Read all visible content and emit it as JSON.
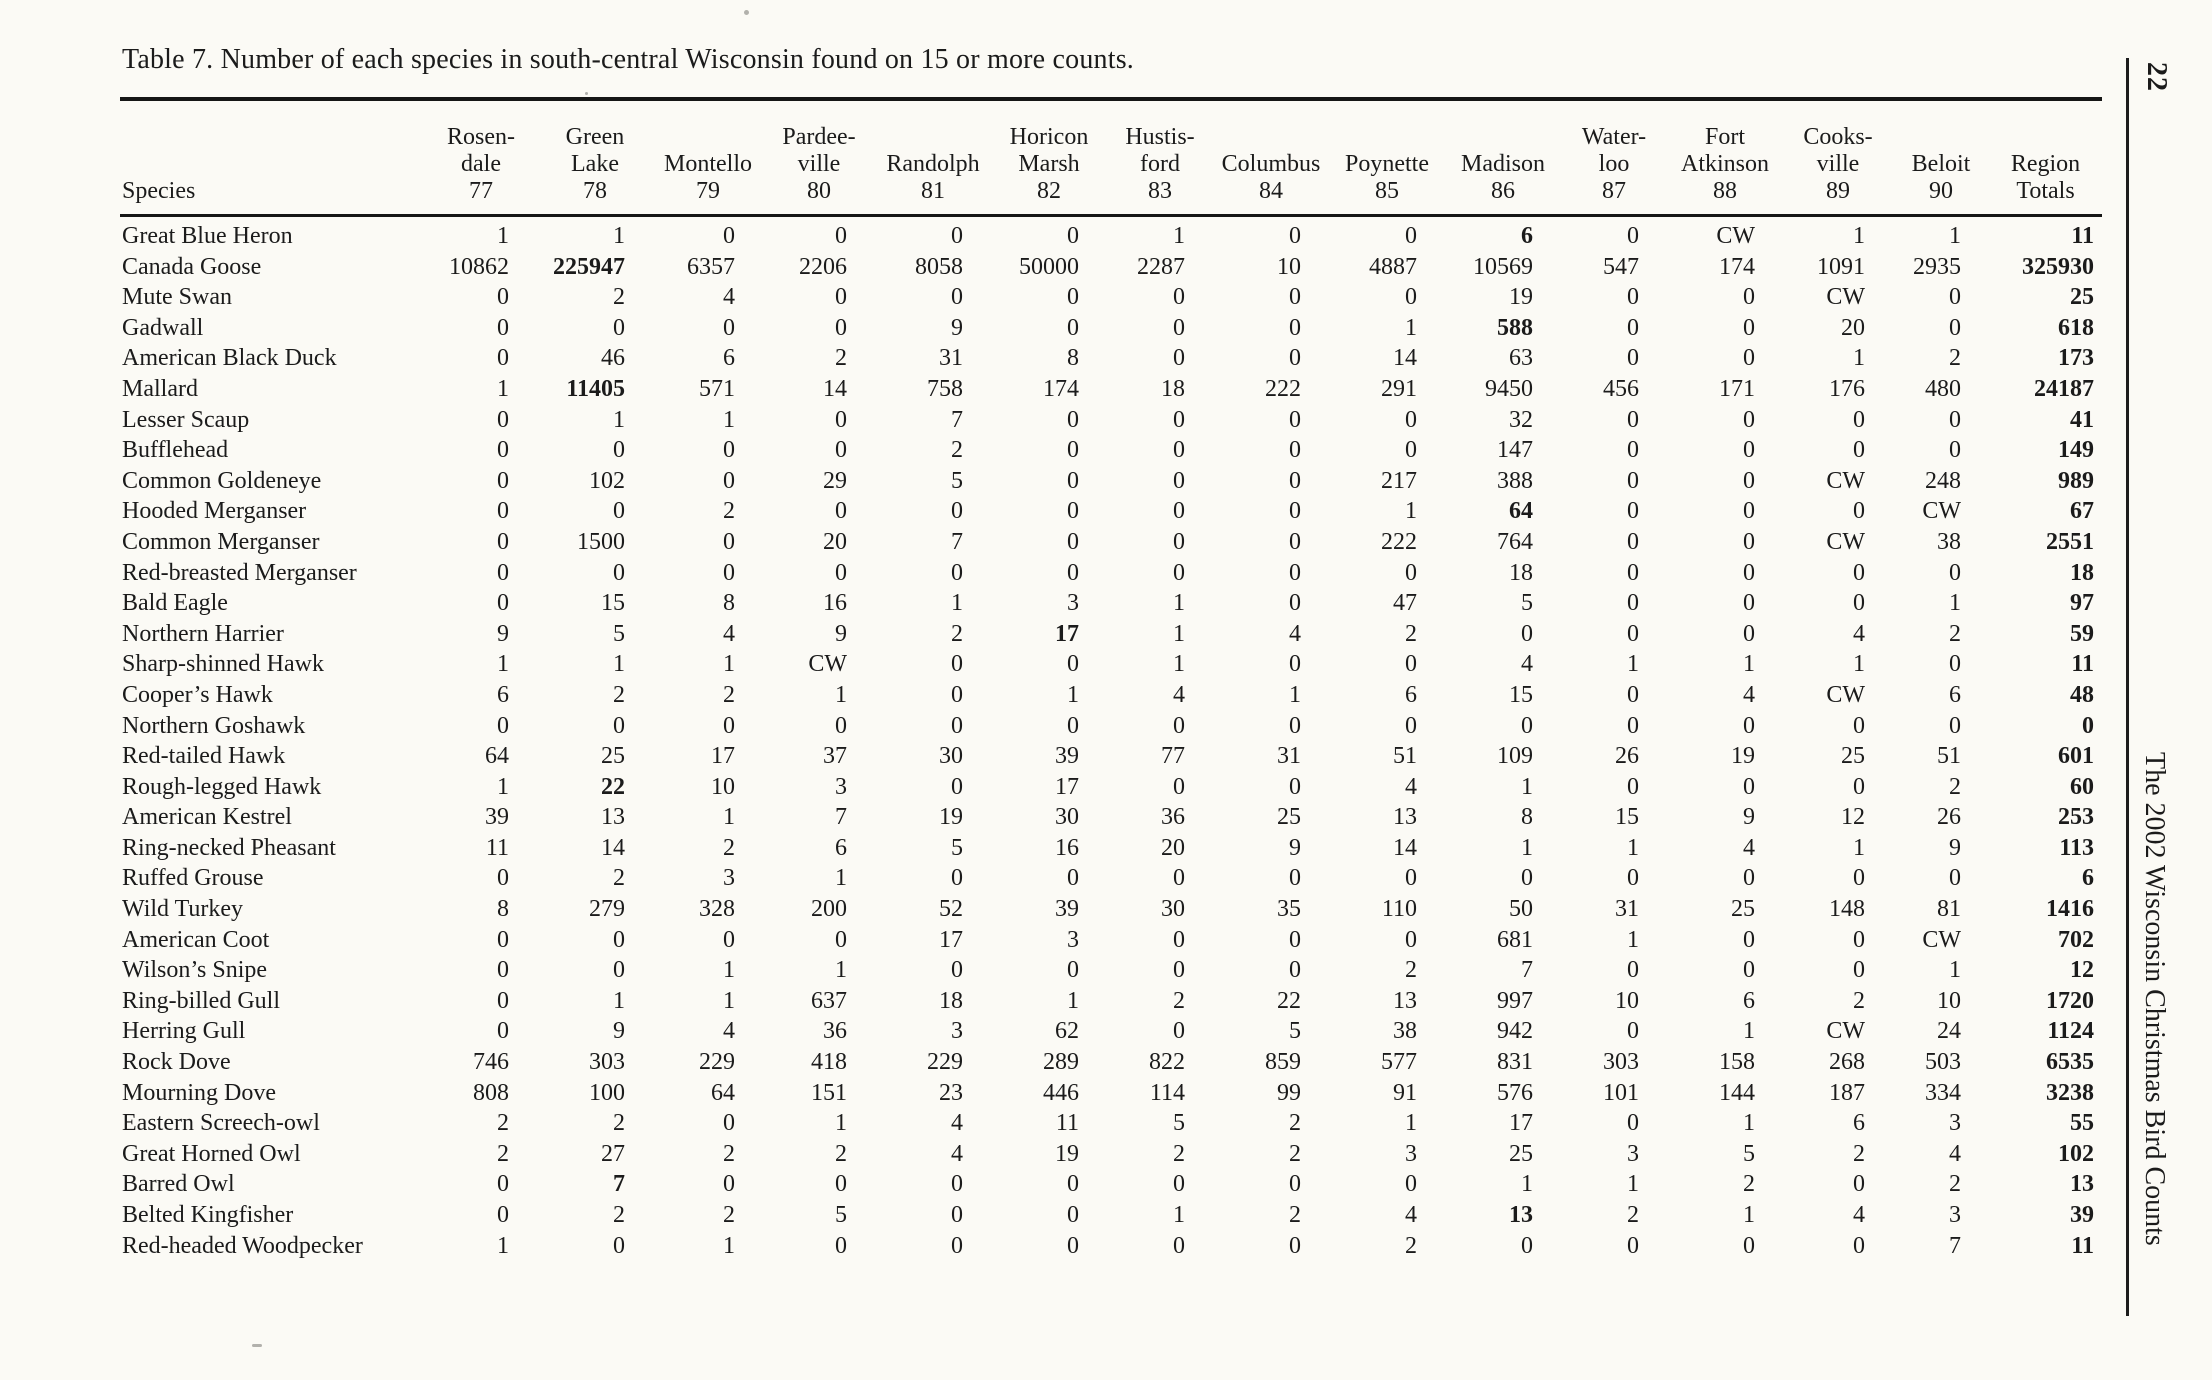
{
  "title": "Table 7. Number of each species in south-central Wisconsin found on 15 or more counts.",
  "sidebar": {
    "page_number": "22",
    "journal_title": "The 2002 Wisconsin Christmas Bird Counts"
  },
  "table": {
    "species_header": "Species",
    "columns": [
      {
        "lines": [
          "Rosen-",
          "dale",
          "77"
        ]
      },
      {
        "lines": [
          "Green",
          "Lake",
          "78"
        ]
      },
      {
        "lines": [
          "Montello",
          "79"
        ]
      },
      {
        "lines": [
          "Pardee-",
          "ville",
          "80"
        ]
      },
      {
        "lines": [
          "Randolph",
          "81"
        ]
      },
      {
        "lines": [
          "Horicon",
          "Marsh",
          "82"
        ]
      },
      {
        "lines": [
          "Hustis-",
          "ford",
          "83"
        ]
      },
      {
        "lines": [
          "Columbus",
          "84"
        ]
      },
      {
        "lines": [
          "Poynette",
          "85"
        ]
      },
      {
        "lines": [
          "Madison",
          "86"
        ]
      },
      {
        "lines": [
          "Water-",
          "loo",
          "87"
        ]
      },
      {
        "lines": [
          "Fort",
          "Atkinson",
          "88"
        ]
      },
      {
        "lines": [
          "Cooks-",
          "ville",
          "89"
        ]
      },
      {
        "lines": [
          "Beloit",
          "90"
        ]
      },
      {
        "lines": [
          "Region",
          "Totals"
        ],
        "bold": true
      }
    ],
    "rows": [
      {
        "species": "Great Blue Heron",
        "values": [
          "1",
          "1",
          "0",
          "0",
          "0",
          "0",
          "1",
          "0",
          "0",
          "6",
          "0",
          "CW",
          "1",
          "1"
        ],
        "bold": [
          9
        ],
        "total": "11"
      },
      {
        "species": "Canada Goose",
        "values": [
          "10862",
          "225947",
          "6357",
          "2206",
          "8058",
          "50000",
          "2287",
          "10",
          "4887",
          "10569",
          "547",
          "174",
          "1091",
          "2935"
        ],
        "bold": [
          1
        ],
        "total": "325930"
      },
      {
        "species": "Mute Swan",
        "values": [
          "0",
          "2",
          "4",
          "0",
          "0",
          "0",
          "0",
          "0",
          "0",
          "19",
          "0",
          "0",
          "CW",
          "0"
        ],
        "bold": [],
        "total": "25"
      },
      {
        "species": "Gadwall",
        "values": [
          "0",
          "0",
          "0",
          "0",
          "9",
          "0",
          "0",
          "0",
          "1",
          "588",
          "0",
          "0",
          "20",
          "0"
        ],
        "bold": [
          9
        ],
        "total": "618"
      },
      {
        "species": "American Black Duck",
        "values": [
          "0",
          "46",
          "6",
          "2",
          "31",
          "8",
          "0",
          "0",
          "14",
          "63",
          "0",
          "0",
          "1",
          "2"
        ],
        "bold": [],
        "total": "173"
      },
      {
        "species": "Mallard",
        "values": [
          "1",
          "11405",
          "571",
          "14",
          "758",
          "174",
          "18",
          "222",
          "291",
          "9450",
          "456",
          "171",
          "176",
          "480"
        ],
        "bold": [
          1
        ],
        "total": "24187"
      },
      {
        "species": "Lesser Scaup",
        "values": [
          "0",
          "1",
          "1",
          "0",
          "7",
          "0",
          "0",
          "0",
          "0",
          "32",
          "0",
          "0",
          "0",
          "0"
        ],
        "bold": [],
        "total": "41"
      },
      {
        "species": "Bufflehead",
        "values": [
          "0",
          "0",
          "0",
          "0",
          "2",
          "0",
          "0",
          "0",
          "0",
          "147",
          "0",
          "0",
          "0",
          "0"
        ],
        "bold": [],
        "total": "149"
      },
      {
        "species": "Common Goldeneye",
        "values": [
          "0",
          "102",
          "0",
          "29",
          "5",
          "0",
          "0",
          "0",
          "217",
          "388",
          "0",
          "0",
          "CW",
          "248"
        ],
        "bold": [],
        "total": "989"
      },
      {
        "species": "Hooded Merganser",
        "values": [
          "0",
          "0",
          "2",
          "0",
          "0",
          "0",
          "0",
          "0",
          "1",
          "64",
          "0",
          "0",
          "0",
          "CW"
        ],
        "bold": [
          9
        ],
        "total": "67"
      },
      {
        "species": "Common Merganser",
        "values": [
          "0",
          "1500",
          "0",
          "20",
          "7",
          "0",
          "0",
          "0",
          "222",
          "764",
          "0",
          "0",
          "CW",
          "38"
        ],
        "bold": [],
        "total": "2551"
      },
      {
        "species": "Red-breasted Merganser",
        "values": [
          "0",
          "0",
          "0",
          "0",
          "0",
          "0",
          "0",
          "0",
          "0",
          "18",
          "0",
          "0",
          "0",
          "0"
        ],
        "bold": [],
        "total": "18"
      },
      {
        "species": "Bald Eagle",
        "values": [
          "0",
          "15",
          "8",
          "16",
          "1",
          "3",
          "1",
          "0",
          "47",
          "5",
          "0",
          "0",
          "0",
          "1"
        ],
        "bold": [],
        "total": "97"
      },
      {
        "species": "Northern Harrier",
        "values": [
          "9",
          "5",
          "4",
          "9",
          "2",
          "17",
          "1",
          "4",
          "2",
          "0",
          "0",
          "0",
          "4",
          "2"
        ],
        "bold": [
          5
        ],
        "total": "59"
      },
      {
        "species": "Sharp-shinned Hawk",
        "values": [
          "1",
          "1",
          "1",
          "CW",
          "0",
          "0",
          "1",
          "0",
          "0",
          "4",
          "1",
          "1",
          "1",
          "0"
        ],
        "bold": [],
        "total": "11"
      },
      {
        "species": "Cooper’s Hawk",
        "values": [
          "6",
          "2",
          "2",
          "1",
          "0",
          "1",
          "4",
          "1",
          "6",
          "15",
          "0",
          "4",
          "CW",
          "6"
        ],
        "bold": [],
        "total": "48"
      },
      {
        "species": "Northern Goshawk",
        "values": [
          "0",
          "0",
          "0",
          "0",
          "0",
          "0",
          "0",
          "0",
          "0",
          "0",
          "0",
          "0",
          "0",
          "0"
        ],
        "bold": [],
        "total": "0"
      },
      {
        "species": "Red-tailed Hawk",
        "values": [
          "64",
          "25",
          "17",
          "37",
          "30",
          "39",
          "77",
          "31",
          "51",
          "109",
          "26",
          "19",
          "25",
          "51"
        ],
        "bold": [],
        "total": "601"
      },
      {
        "species": "Rough-legged Hawk",
        "values": [
          "1",
          "22",
          "10",
          "3",
          "0",
          "17",
          "0",
          "0",
          "4",
          "1",
          "0",
          "0",
          "0",
          "2"
        ],
        "bold": [
          1
        ],
        "total": "60"
      },
      {
        "species": "American Kestrel",
        "values": [
          "39",
          "13",
          "1",
          "7",
          "19",
          "30",
          "36",
          "25",
          "13",
          "8",
          "15",
          "9",
          "12",
          "26"
        ],
        "bold": [],
        "total": "253"
      },
      {
        "species": "Ring-necked Pheasant",
        "values": [
          "11",
          "14",
          "2",
          "6",
          "5",
          "16",
          "20",
          "9",
          "14",
          "1",
          "1",
          "4",
          "1",
          "9"
        ],
        "bold": [],
        "total": "113"
      },
      {
        "species": "Ruffed Grouse",
        "values": [
          "0",
          "2",
          "3",
          "1",
          "0",
          "0",
          "0",
          "0",
          "0",
          "0",
          "0",
          "0",
          "0",
          "0"
        ],
        "bold": [],
        "total": "6"
      },
      {
        "species": "Wild Turkey",
        "values": [
          "8",
          "279",
          "328",
          "200",
          "52",
          "39",
          "30",
          "35",
          "110",
          "50",
          "31",
          "25",
          "148",
          "81"
        ],
        "bold": [],
        "total": "1416"
      },
      {
        "species": "American Coot",
        "values": [
          "0",
          "0",
          "0",
          "0",
          "17",
          "3",
          "0",
          "0",
          "0",
          "681",
          "1",
          "0",
          "0",
          "CW"
        ],
        "bold": [],
        "total": "702"
      },
      {
        "species": "Wilson’s Snipe",
        "values": [
          "0",
          "0",
          "1",
          "1",
          "0",
          "0",
          "0",
          "0",
          "2",
          "7",
          "0",
          "0",
          "0",
          "1"
        ],
        "bold": [],
        "total": "12"
      },
      {
        "species": "Ring-billed Gull",
        "values": [
          "0",
          "1",
          "1",
          "637",
          "18",
          "1",
          "2",
          "22",
          "13",
          "997",
          "10",
          "6",
          "2",
          "10"
        ],
        "bold": [],
        "total": "1720"
      },
      {
        "species": "Herring Gull",
        "values": [
          "0",
          "9",
          "4",
          "36",
          "3",
          "62",
          "0",
          "5",
          "38",
          "942",
          "0",
          "1",
          "CW",
          "24"
        ],
        "bold": [],
        "total": "1124"
      },
      {
        "species": "Rock Dove",
        "values": [
          "746",
          "303",
          "229",
          "418",
          "229",
          "289",
          "822",
          "859",
          "577",
          "831",
          "303",
          "158",
          "268",
          "503"
        ],
        "bold": [],
        "total": "6535"
      },
      {
        "species": "Mourning Dove",
        "values": [
          "808",
          "100",
          "64",
          "151",
          "23",
          "446",
          "114",
          "99",
          "91",
          "576",
          "101",
          "144",
          "187",
          "334"
        ],
        "bold": [],
        "total": "3238"
      },
      {
        "species": "Eastern Screech-owl",
        "values": [
          "2",
          "2",
          "0",
          "1",
          "4",
          "11",
          "5",
          "2",
          "1",
          "17",
          "0",
          "1",
          "6",
          "3"
        ],
        "bold": [],
        "total": "55"
      },
      {
        "species": "Great Horned Owl",
        "values": [
          "2",
          "27",
          "2",
          "2",
          "4",
          "19",
          "2",
          "2",
          "3",
          "25",
          "3",
          "5",
          "2",
          "4"
        ],
        "bold": [],
        "total": "102"
      },
      {
        "species": "Barred Owl",
        "values": [
          "0",
          "7",
          "0",
          "0",
          "0",
          "0",
          "0",
          "0",
          "0",
          "1",
          "1",
          "2",
          "0",
          "2"
        ],
        "bold": [
          1
        ],
        "total": "13"
      },
      {
        "species": "Belted Kingfisher",
        "values": [
          "0",
          "2",
          "2",
          "5",
          "0",
          "0",
          "1",
          "2",
          "4",
          "13",
          "2",
          "1",
          "4",
          "3"
        ],
        "bold": [
          9
        ],
        "total": "39"
      },
      {
        "species": "Red-headed Woodpecker",
        "values": [
          "1",
          "0",
          "1",
          "0",
          "0",
          "0",
          "0",
          "0",
          "2",
          "0",
          "0",
          "0",
          "0",
          "7"
        ],
        "bold": [],
        "total": "11"
      }
    ]
  }
}
